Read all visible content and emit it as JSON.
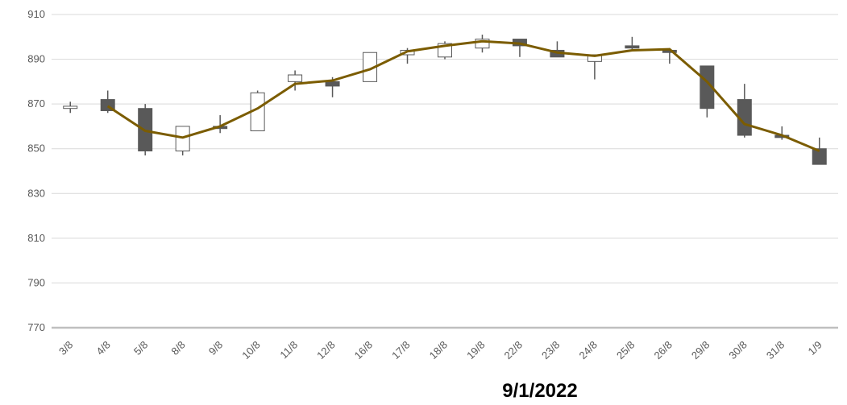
{
  "chart_data": {
    "type": "candlestick",
    "title": "9/1/2022",
    "xlabel": "",
    "ylabel": "",
    "ylim": [
      770,
      910
    ],
    "y_ticks": [
      770,
      790,
      810,
      830,
      850,
      870,
      890,
      910
    ],
    "grid": "horizontal",
    "categories": [
      "3/8",
      "4/8",
      "5/8",
      "8/8",
      "9/8",
      "10/8",
      "11/8",
      "12/8",
      "16/8",
      "17/8",
      "18/8",
      "19/8",
      "22/8",
      "23/8",
      "24/8",
      "25/8",
      "26/8",
      "29/8",
      "30/8",
      "31/8",
      "1/9"
    ],
    "ohlc": [
      {
        "open": 868,
        "high": 871,
        "low": 866,
        "close": 869
      },
      {
        "open": 872,
        "high": 876,
        "low": 866,
        "close": 867
      },
      {
        "open": 868,
        "high": 870,
        "low": 847,
        "close": 849
      },
      {
        "open": 849,
        "high": 860,
        "low": 847,
        "close": 860
      },
      {
        "open": 860,
        "high": 865,
        "low": 857,
        "close": 859
      },
      {
        "open": 858,
        "high": 876,
        "low": 858,
        "close": 875
      },
      {
        "open": 880,
        "high": 885,
        "low": 876,
        "close": 883
      },
      {
        "open": 880,
        "high": 882,
        "low": 873,
        "close": 878
      },
      {
        "open": 880,
        "high": 893,
        "low": 880,
        "close": 893
      },
      {
        "open": 892,
        "high": 895,
        "low": 888,
        "close": 894
      },
      {
        "open": 891,
        "high": 898,
        "low": 890,
        "close": 897
      },
      {
        "open": 895,
        "high": 901,
        "low": 893,
        "close": 899
      },
      {
        "open": 899,
        "high": 899,
        "low": 891,
        "close": 896
      },
      {
        "open": 894,
        "high": 898,
        "low": 891,
        "close": 891
      },
      {
        "open": 889,
        "high": 892,
        "low": 881,
        "close": 892
      },
      {
        "open": 896,
        "high": 900,
        "low": 894,
        "close": 895
      },
      {
        "open": 894,
        "high": 895,
        "low": 888,
        "close": 893
      },
      {
        "open": 887,
        "high": 887,
        "low": 864,
        "close": 868
      },
      {
        "open": 872,
        "high": 879,
        "low": 855,
        "close": 856
      },
      {
        "open": 856,
        "high": 860,
        "low": 854,
        "close": 855
      },
      {
        "open": 850,
        "high": 855,
        "low": 843,
        "close": 843
      }
    ],
    "line": [
      null,
      869,
      858,
      855,
      860,
      868,
      879,
      880.5,
      885.5,
      893.5,
      896,
      898,
      897,
      893,
      891.5,
      894,
      894.5,
      880,
      861,
      856,
      849
    ],
    "colors": {
      "line": "#7b5c00",
      "down_candle": "#595959",
      "up_candle_fill": "#ffffff",
      "candle_stroke": "#595959",
      "grid": "#d9d9d9",
      "axis": "#bfbfbf"
    }
  }
}
